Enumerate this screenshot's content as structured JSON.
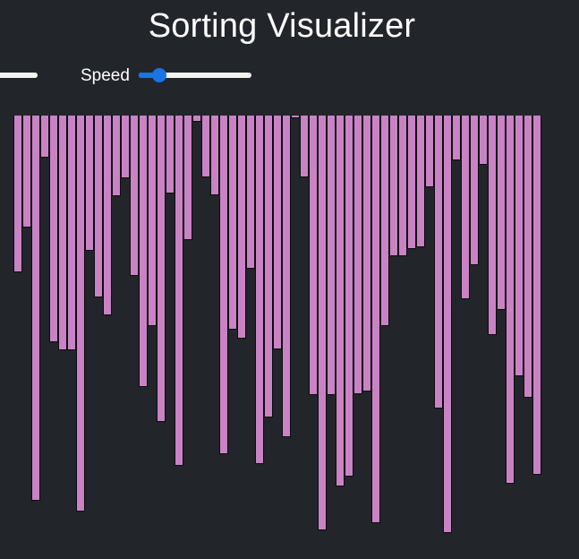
{
  "header": {
    "title": "Sorting Visualizer"
  },
  "controls": {
    "size_slider_fraction": 1.0,
    "speed_label": "Speed",
    "speed_slider_fraction": 0.18
  },
  "bar_color": "#c983c4",
  "bar_border_color": "#0c0c0e",
  "accent_color": "#1a73e8",
  "array_values": [
    175,
    125,
    430,
    47,
    253,
    262,
    262,
    442,
    151,
    203,
    223,
    90,
    70,
    179,
    303,
    235,
    342,
    87,
    391,
    139,
    7,
    69,
    89,
    378,
    239,
    249,
    171,
    389,
    337,
    261,
    359,
    3,
    69,
    312,
    463,
    312,
    414,
    403,
    311,
    308,
    455,
    235,
    157,
    157,
    149,
    147,
    80,
    327,
    466,
    50,
    205,
    167,
    55,
    245,
    217,
    411,
    291,
    315,
    401
  ]
}
